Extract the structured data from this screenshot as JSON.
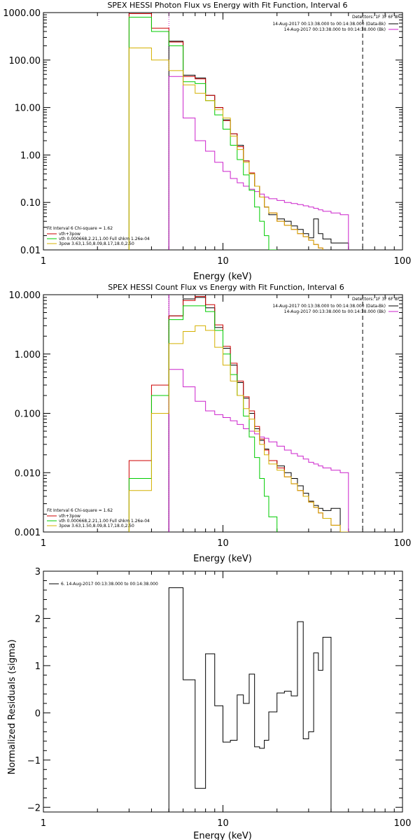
{
  "chart_data": [
    {
      "type": "line",
      "title": "SPEX HESSI Photon Flux vs Energy with Fit Function, Interval 6",
      "xlabel": "Energy (keV)",
      "ylabel": "",
      "xscale": "log",
      "yscale": "log",
      "xlim": [
        1,
        100
      ],
      "ylim": [
        0.01,
        1000
      ],
      "x_ticks": [
        {
          "v": 1,
          "label": "1"
        },
        {
          "v": 10,
          "label": "10"
        },
        {
          "v": 100,
          "label": "100"
        }
      ],
      "y_ticks": [
        {
          "v": 1000,
          "label": "1000.00"
        },
        {
          "v": 100,
          "label": "100.00"
        },
        {
          "v": 10,
          "label": "10.00"
        },
        {
          "v": 1,
          "label": "1.00"
        },
        {
          "v": 0.1,
          "label": "0.10"
        },
        {
          "v": 0.01,
          "label": "0.01"
        }
      ],
      "edges": [
        3,
        4,
        5,
        6,
        7,
        8,
        9,
        10,
        11,
        12,
        13,
        14,
        15,
        16,
        17,
        18,
        20,
        22,
        24,
        26,
        28,
        30,
        32,
        34,
        36,
        40,
        45,
        50,
        60
      ],
      "vlines": [
        {
          "x": 5,
          "style": "dotted",
          "color": "#cc22cc"
        },
        {
          "x": 60,
          "style": "dashed",
          "color": "#000000"
        }
      ],
      "top_legend": {
        "detectors": "Detectors: 1F 3F 6F 8F",
        "items": [
          {
            "text": "14-Aug-2017 00:13:38.000 to 00:14:38.000 (Data-Bk)",
            "color": "#000000"
          },
          {
            "text": "14-Aug-2017 00:13:38.000 to 00:14:38.000 (Bk)",
            "color": "#cc22cc"
          }
        ]
      },
      "fit_legend": {
        "header": "Fit Interval 6   Chi-square = 1.62",
        "items": [
          {
            "text": "vth+3pow",
            "color": "#cc0000"
          },
          {
            "text": "vth 0.000668,2.21,1.00   Full shkm 1.26e-04",
            "color": "#00cc00"
          },
          {
            "text": "3pow 3.63,1.50,8.09,8.17,18.0,2.50",
            "color": "#d4b000"
          }
        ]
      },
      "series": [
        {
          "name": "Data-Bk",
          "color": "#000000",
          "start": 2,
          "values": [
            250,
            48,
            42,
            18,
            10,
            5.5,
            2.8,
            1.6,
            0.75,
            0.4,
            0.22,
            0.13,
            0.08,
            0.055,
            0.045,
            0.04,
            0.032,
            0.027,
            0.022,
            0.018,
            0.045,
            0.022,
            0.017,
            0.014,
            0.014
          ]
        },
        {
          "name": "Bk",
          "color": "#cc22cc",
          "start": 2,
          "values": [
            45,
            6,
            2,
            1.2,
            0.7,
            0.45,
            0.32,
            0.26,
            0.22,
            0.19,
            0.17,
            0.15,
            0.13,
            0.12,
            0.11,
            0.1,
            0.095,
            0.09,
            0.085,
            0.08,
            0.075,
            0.07,
            0.065,
            0.06,
            0.055
          ]
        },
        {
          "name": "vth+3pow",
          "color": "#cc0000",
          "start": 0,
          "values": [
            950,
            470,
            240,
            45,
            40,
            18,
            10,
            5.3,
            2.8,
            1.5,
            0.75,
            0.42,
            0.22,
            0.13,
            0.08,
            0.06,
            0.04,
            0.033,
            0.027,
            0.022,
            0.019,
            0.016,
            0.013,
            0.011,
            0.009,
            0.008,
            0.007,
            0.006
          ]
        },
        {
          "name": "vth",
          "color": "#00cc00",
          "start": 0,
          "values": [
            800,
            400,
            200,
            35,
            32,
            14,
            7,
            3.5,
            1.6,
            0.8,
            0.38,
            0.18,
            0.08,
            0.04,
            0.02,
            0.01,
            0.005
          ]
        },
        {
          "name": "3pow",
          "color": "#d4b000",
          "start": 0,
          "values": [
            180,
            100,
            60,
            30,
            20,
            14,
            9,
            6,
            2.5,
            1.3,
            0.7,
            0.4,
            0.22,
            0.13,
            0.08,
            0.06,
            0.04,
            0.033,
            0.027,
            0.022,
            0.019,
            0.016,
            0.013,
            0.011,
            0.009,
            0.008,
            0.007,
            0.006
          ]
        }
      ]
    },
    {
      "type": "line",
      "title": "SPEX HESSI Count Flux vs Energy with Fit Function, Interval 6",
      "xlabel": "Energy (keV)",
      "ylabel": "",
      "xscale": "log",
      "yscale": "log",
      "xlim": [
        1,
        100
      ],
      "ylim": [
        0.001,
        10
      ],
      "x_ticks": [
        {
          "v": 1,
          "label": "1"
        },
        {
          "v": 10,
          "label": "10"
        },
        {
          "v": 100,
          "label": "100"
        }
      ],
      "y_ticks": [
        {
          "v": 10,
          "label": "10.000"
        },
        {
          "v": 1,
          "label": "1.000"
        },
        {
          "v": 0.1,
          "label": "0.100"
        },
        {
          "v": 0.01,
          "label": "0.010"
        },
        {
          "v": 0.001,
          "label": "0.001"
        }
      ],
      "edges": [
        3,
        4,
        5,
        6,
        7,
        8,
        9,
        10,
        11,
        12,
        13,
        14,
        15,
        16,
        17,
        18,
        20,
        22,
        24,
        26,
        28,
        30,
        32,
        34,
        36,
        40,
        45,
        50,
        60,
        70
      ],
      "vlines": [
        {
          "x": 5,
          "style": "dotted",
          "color": "#000000"
        },
        {
          "x": 5,
          "style": "solid",
          "color": "#cc22cc"
        },
        {
          "x": 60,
          "style": "dashed",
          "color": "#000000"
        }
      ],
      "top_legend": {
        "detectors": "Detectors: 1F 3F 6F 8F",
        "items": [
          {
            "text": "14-Aug-2017 00:13:38.000 to 00:14:38.000 (Data-Bk)",
            "color": "#000000"
          },
          {
            "text": "14-Aug-2017 00:13:38.000 to 00:14:38.000 (Bk)",
            "color": "#cc22cc"
          }
        ]
      },
      "fit_legend": {
        "header": "Fit Interval 6   Chi-square = 1.62",
        "items": [
          {
            "text": "vth+3pow",
            "color": "#cc0000"
          },
          {
            "text": "vth 0.000668,2.21,1.00   Full shkm 1.26e-04",
            "color": "#00cc00"
          },
          {
            "text": "3pow 3.63,1.50,8.09,8.17,18.0,2.50",
            "color": "#d4b000"
          }
        ]
      },
      "series": [
        {
          "name": "Data-Bk",
          "color": "#000000",
          "start": 2,
          "values": [
            4.4,
            8.5,
            9,
            6,
            2.8,
            1.25,
            0.65,
            0.33,
            0.18,
            0.1,
            0.055,
            0.035,
            0.025,
            0.016,
            0.013,
            0.01,
            0.008,
            0.006,
            0.0045,
            0.0033,
            0.0028,
            0.0025,
            0.0023,
            0.0025
          ]
        },
        {
          "name": "Bk",
          "color": "#cc22cc",
          "start": 2,
          "values": [
            0.55,
            0.28,
            0.16,
            0.11,
            0.095,
            0.085,
            0.075,
            0.065,
            0.055,
            0.05,
            0.045,
            0.04,
            0.038,
            0.033,
            0.028,
            0.024,
            0.021,
            0.019,
            0.017,
            0.015,
            0.014,
            0.013,
            0.012,
            0.011,
            0.01
          ]
        },
        {
          "name": "vth+3pow",
          "color": "#cc0000",
          "start": 0,
          "values": [
            0.016,
            0.3,
            4.4,
            8,
            9.3,
            6.8,
            3.1,
            1.35,
            0.7,
            0.35,
            0.19,
            0.11,
            0.06,
            0.037,
            0.024,
            0.016,
            0.012,
            0.0085,
            0.0065,
            0.005,
            0.004,
            0.0032,
            0.0026,
            0.0021,
            0.0017,
            0.0013,
            0.001
          ]
        },
        {
          "name": "vth",
          "color": "#00cc00",
          "start": 0,
          "values": [
            0.008,
            0.2,
            3.8,
            6.5,
            6.5,
            5.2,
            2.5,
            1,
            0.45,
            0.2,
            0.09,
            0.04,
            0.018,
            0.008,
            0.004,
            0.0018,
            0.0009
          ]
        },
        {
          "name": "3pow",
          "color": "#d4b000",
          "start": 0,
          "values": [
            0.005,
            0.1,
            1.5,
            2.4,
            3,
            2.5,
            1.3,
            0.65,
            0.35,
            0.2,
            0.12,
            0.08,
            0.05,
            0.03,
            0.02,
            0.014,
            0.011,
            0.0085,
            0.0065,
            0.005,
            0.004,
            0.0032,
            0.0026,
            0.0021,
            0.0017,
            0.0013,
            0.001,
            0.0008
          ]
        }
      ]
    },
    {
      "type": "line",
      "title": "",
      "xlabel": "Energy (keV)",
      "ylabel": "Normalized Residuals (sigma)",
      "xscale": "log",
      "yscale": "linear",
      "xlim": [
        1,
        100
      ],
      "ylim": [
        -2.1,
        3
      ],
      "x_ticks": [
        {
          "v": 1,
          "label": "1"
        },
        {
          "v": 10,
          "label": "10"
        },
        {
          "v": 100,
          "label": "100"
        }
      ],
      "y_ticks": [
        {
          "v": 3,
          "label": "3"
        },
        {
          "v": 2,
          "label": "2"
        },
        {
          "v": 1,
          "label": "1"
        },
        {
          "v": 0,
          "label": "0"
        },
        {
          "v": -1,
          "label": "−1"
        },
        {
          "v": -2,
          "label": "−2"
        }
      ],
      "edges": [
        5,
        6,
        7,
        8,
        9,
        10,
        11,
        12,
        13,
        14,
        15,
        16,
        17,
        18,
        20,
        22,
        24,
        26,
        28,
        30,
        32,
        34,
        36,
        40,
        45,
        50,
        55,
        60
      ],
      "vlines": [],
      "top_legend": {
        "detectors": "",
        "items": [
          {
            "text": "6. 14-Aug-2017 00:13:38.000 to 00:14:38.000",
            "color": "#000000"
          }
        ]
      },
      "fit_legend": {
        "header": "",
        "items": []
      },
      "series": [
        {
          "name": "",
          "color": "#000000",
          "start": 0,
          "values": [
            2.65,
            0.7,
            -1.6,
            1.25,
            0.15,
            -0.62,
            -0.58,
            0.38,
            0.2,
            0.82,
            -0.72,
            -0.75,
            -0.58,
            0.02,
            0.42,
            0.46,
            0.36,
            1.93,
            -0.55,
            -0.4,
            1.27,
            0.9,
            1.6
          ]
        }
      ]
    }
  ]
}
